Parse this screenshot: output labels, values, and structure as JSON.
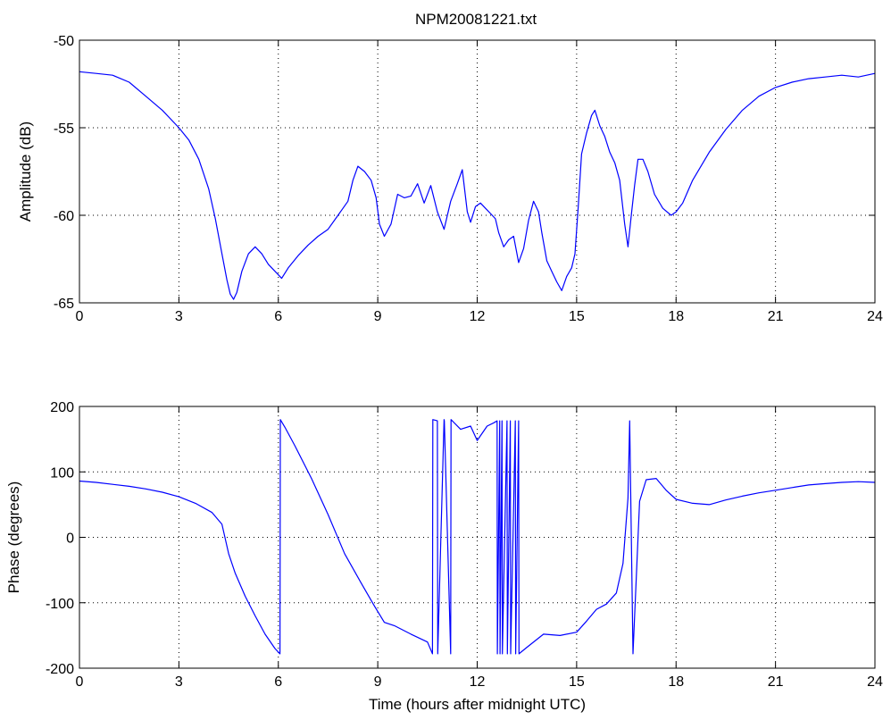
{
  "window": {
    "title": "NPM20081221.txt"
  },
  "chart_data": [
    {
      "type": "line",
      "title": "NPM20081221.txt",
      "xlabel": "",
      "ylabel": "Amplitude (dB)",
      "xlim": [
        0,
        24
      ],
      "ylim": [
        -65,
        -50
      ],
      "xticks": [
        0,
        3,
        6,
        9,
        12,
        15,
        18,
        21,
        24
      ],
      "yticks": [
        -65,
        -60,
        -55,
        -50
      ],
      "grid": true,
      "line_color": "#0000ff",
      "series": [
        {
          "x": [
            0,
            0.5,
            1,
            1.5,
            2,
            2.5,
            3,
            3.3,
            3.6,
            3.9,
            4.1,
            4.3,
            4.45,
            4.55,
            4.65,
            4.75,
            4.9,
            5.1,
            5.3,
            5.5,
            5.7,
            5.9,
            6.1,
            6.3,
            6.6,
            6.9,
            7.2,
            7.5,
            7.8,
            8.1,
            8.25,
            8.4,
            8.6,
            8.8,
            8.95,
            9.05,
            9.2,
            9.4,
            9.6,
            9.8,
            10.0,
            10.2,
            10.4,
            10.6,
            10.8,
            11.0,
            11.2,
            11.4,
            11.55,
            11.7,
            11.8,
            11.95,
            12.1,
            12.25,
            12.4,
            12.55,
            12.65,
            12.8,
            12.95,
            13.1,
            13.25,
            13.4,
            13.55,
            13.7,
            13.85,
            13.95,
            14.1,
            14.25,
            14.4,
            14.55,
            14.7,
            14.85,
            14.95,
            15.05,
            15.15,
            15.3,
            15.45,
            15.55,
            15.7,
            15.85,
            16.0,
            16.15,
            16.3,
            16.45,
            16.55,
            16.65,
            16.75,
            16.85,
            17.0,
            17.15,
            17.35,
            17.6,
            17.85,
            18.0,
            18.2,
            18.5,
            19.0,
            19.5,
            20.0,
            20.5,
            21.0,
            21.5,
            22.0,
            22.5,
            23.0,
            23.5,
            24.0
          ],
          "y": [
            -51.8,
            -51.9,
            -52.0,
            -52.4,
            -53.2,
            -54.0,
            -55.0,
            -55.7,
            -56.8,
            -58.5,
            -60.2,
            -62.2,
            -63.7,
            -64.5,
            -64.8,
            -64.4,
            -63.2,
            -62.2,
            -61.8,
            -62.2,
            -62.8,
            -63.2,
            -63.6,
            -63.0,
            -62.3,
            -61.7,
            -61.2,
            -60.8,
            -60.0,
            -59.2,
            -58.0,
            -57.2,
            -57.5,
            -58.0,
            -59.0,
            -60.5,
            -61.2,
            -60.5,
            -58.8,
            -59.0,
            -58.9,
            -58.2,
            -59.3,
            -58.3,
            -59.8,
            -60.8,
            -59.2,
            -58.2,
            -57.4,
            -59.8,
            -60.4,
            -59.5,
            -59.3,
            -59.6,
            -59.9,
            -60.2,
            -61.0,
            -61.8,
            -61.4,
            -61.2,
            -62.7,
            -61.9,
            -60.3,
            -59.2,
            -59.8,
            -61.0,
            -62.6,
            -63.2,
            -63.8,
            -64.3,
            -63.5,
            -63.0,
            -62.2,
            -59.5,
            -56.5,
            -55.3,
            -54.3,
            -54.0,
            -54.9,
            -55.5,
            -56.4,
            -57.0,
            -58.0,
            -60.5,
            -61.8,
            -60.0,
            -58.3,
            -56.8,
            -56.8,
            -57.5,
            -58.8,
            -59.6,
            -60.0,
            -59.8,
            -59.3,
            -58.0,
            -56.4,
            -55.1,
            -54.0,
            -53.2,
            -52.7,
            -52.4,
            -52.2,
            -52.1,
            -52.0,
            -52.1,
            -51.9
          ]
        }
      ]
    },
    {
      "type": "line",
      "title": "",
      "xlabel": "Time (hours after midnight UTC)",
      "ylabel": "Phase (degrees)",
      "xlim": [
        0,
        24
      ],
      "ylim": [
        -200,
        200
      ],
      "xticks": [
        0,
        3,
        6,
        9,
        12,
        15,
        18,
        21,
        24
      ],
      "yticks": [
        -200,
        -100,
        0,
        100,
        200
      ],
      "grid": true,
      "line_color": "#0000ff",
      "series": [
        {
          "x": [
            0,
            0.5,
            1,
            1.5,
            2,
            2.5,
            3,
            3.5,
            4.0,
            4.3,
            4.5,
            4.7,
            5.0,
            5.3,
            5.6,
            5.9,
            6.05,
            6.06,
            6.2,
            6.5,
            7.0,
            7.5,
            8.0,
            8.5,
            8.9,
            9.2,
            9.5,
            10.0,
            10.5,
            10.65,
            10.66,
            10.8,
            10.81,
            11.0,
            11.01,
            11.2,
            11.21,
            11.5,
            11.8,
            12.0,
            12.3,
            12.5,
            12.6,
            12.61,
            12.68,
            12.69,
            12.75,
            12.76,
            12.9,
            12.91,
            13.0,
            13.01,
            13.15,
            13.16,
            13.25,
            13.26,
            13.5,
            14.0,
            14.5,
            15.0,
            15.3,
            15.6,
            15.9,
            16.2,
            16.4,
            16.55,
            16.6,
            16.7,
            16.9,
            17.1,
            17.4,
            17.7,
            18.0,
            18.5,
            19.0,
            19.5,
            20.0,
            20.5,
            21.0,
            21.5,
            22.0,
            22.5,
            23.0,
            23.5,
            24.0
          ],
          "y": [
            86,
            84,
            81,
            78,
            74,
            69,
            62,
            52,
            38,
            20,
            -25,
            -55,
            -90,
            -120,
            -148,
            -170,
            -178,
            180,
            168,
            140,
            90,
            35,
            -25,
            -70,
            -105,
            -130,
            -135,
            -148,
            -160,
            -178,
            180,
            178,
            -178,
            180,
            178,
            -178,
            180,
            165,
            170,
            148,
            170,
            175,
            178,
            -178,
            178,
            -178,
            178,
            -178,
            178,
            -178,
            178,
            -178,
            178,
            -178,
            178,
            -178,
            -168,
            -148,
            -150,
            -145,
            -128,
            -110,
            -102,
            -85,
            -40,
            60,
            178,
            -178,
            55,
            88,
            90,
            72,
            58,
            52,
            50,
            57,
            63,
            68,
            72,
            76,
            80,
            82,
            84,
            85,
            84
          ]
        }
      ]
    }
  ]
}
